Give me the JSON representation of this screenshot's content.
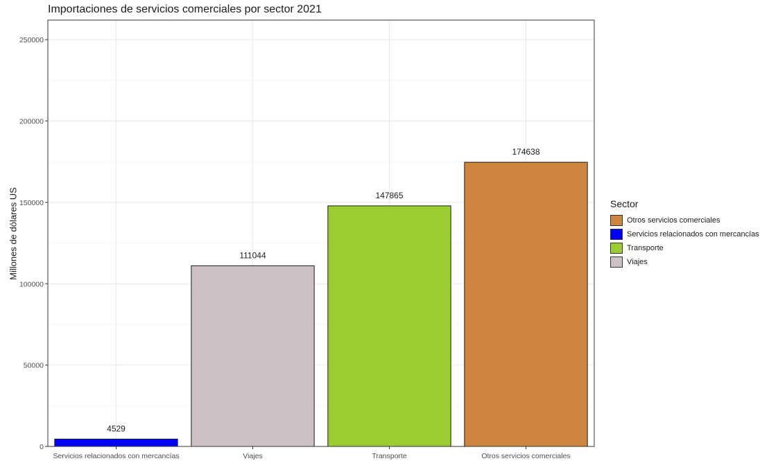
{
  "chart_data": {
    "type": "bar",
    "title": "Importaciones de servicios comerciales por sector 2021",
    "xlabel": "",
    "ylabel": "Millones de dólares US",
    "categories": [
      "Servicios relacionados con mercancías",
      "Viajes",
      "Transporte",
      "Otros servicios comerciales"
    ],
    "values": [
      4529,
      111044,
      147865,
      174638
    ],
    "data_labels": [
      "4529",
      "111044",
      "147865",
      "174638"
    ],
    "bar_colors": [
      "#0000ff",
      "#cdc1c5",
      "#9acd32",
      "#cd853f"
    ],
    "ylim": [
      0,
      262000
    ],
    "yticks": [
      0,
      50000,
      100000,
      150000,
      200000,
      250000
    ],
    "ytick_labels": [
      "0",
      "50000",
      "100000",
      "150000",
      "200000",
      "250000"
    ],
    "grid": true,
    "legend": {
      "title": "Sector",
      "position": "right",
      "items": [
        {
          "label": "Otros servicios comerciales",
          "color": "#cd853f"
        },
        {
          "label": "Servicios relacionados con mercancías",
          "color": "#0000ff"
        },
        {
          "label": "Transporte",
          "color": "#9acd32"
        },
        {
          "label": "Viajes",
          "color": "#cdc1c5"
        }
      ]
    }
  }
}
